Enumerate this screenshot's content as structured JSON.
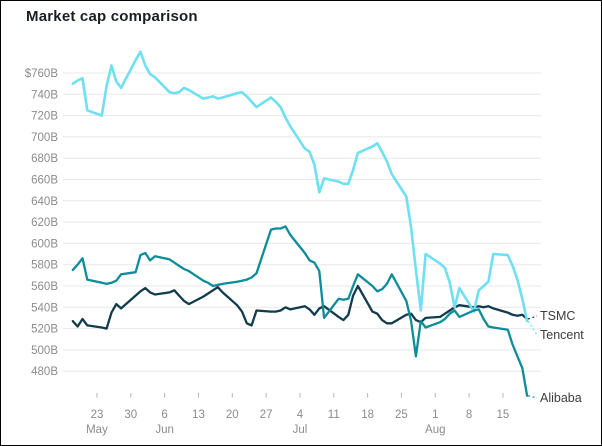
{
  "title": "Market cap comparison",
  "chart_data": {
    "type": "line",
    "title": "Market cap comparison",
    "unit": "USD billions",
    "y_axis": {
      "tick_labels": [
        "$760B",
        "740B",
        "720B",
        "700B",
        "680B",
        "660B",
        "640B",
        "620B",
        "600B",
        "580B",
        "560B",
        "540B",
        "520B",
        "500B",
        "480B"
      ],
      "tick_values": [
        760,
        740,
        720,
        700,
        680,
        660,
        640,
        620,
        600,
        580,
        560,
        540,
        520,
        500,
        480
      ],
      "range_top": 760,
      "range_bottom": 480,
      "grid": true
    },
    "x_axis": {
      "tick_labels": [
        "23",
        "30",
        "6",
        "13",
        "20",
        "27",
        "4",
        "11",
        "18",
        "25",
        "1",
        "8",
        "15"
      ],
      "tick_day_offsets": [
        5,
        12,
        19,
        26,
        33,
        40,
        47,
        54,
        61,
        68,
        75,
        82,
        89
      ],
      "month_labels": [
        {
          "label": "May",
          "tick_index": 0
        },
        {
          "label": "Jun",
          "tick_index": 2
        },
        {
          "label": "Jul",
          "tick_index": 6
        },
        {
          "label": "Aug",
          "tick_index": 10
        }
      ]
    },
    "day_offsets": [
      0,
      1,
      2,
      3,
      6,
      7,
      8,
      9,
      10,
      13,
      14,
      15,
      16,
      17,
      20,
      21,
      22,
      23,
      24,
      27,
      28,
      29,
      30,
      31,
      34,
      35,
      36,
      37,
      38,
      41,
      42,
      43,
      44,
      45,
      48,
      49,
      50,
      51,
      52,
      55,
      56,
      57,
      58,
      59,
      62,
      63,
      64,
      65,
      66,
      69,
      70,
      71,
      72,
      73,
      76,
      77,
      78,
      79,
      80,
      83,
      84,
      85,
      86,
      87,
      90,
      91,
      92,
      93,
      94
    ],
    "series": [
      {
        "name": "TSMC",
        "color": "#123c4d",
        "values": [
          527,
          522,
          529,
          523,
          521,
          520,
          535,
          543,
          539,
          551,
          555,
          558,
          554,
          552,
          554,
          556,
          551,
          546,
          543,
          550,
          553,
          556,
          559,
          554,
          542,
          536,
          525,
          523,
          537,
          536,
          536,
          537,
          540,
          538,
          541,
          538,
          533,
          539,
          541,
          531,
          528,
          533,
          551,
          560,
          536,
          534,
          528,
          525,
          525,
          533,
          534,
          528,
          526,
          530,
          531,
          534,
          537,
          540,
          542,
          540,
          541,
          540,
          541,
          539,
          535,
          533,
          532,
          533,
          529
        ]
      },
      {
        "name": "Tencent",
        "color": "#6fe0f2",
        "values": [
          750,
          753,
          755,
          725,
          720,
          748,
          767,
          752,
          746,
          772,
          780,
          767,
          759,
          756,
          742,
          741,
          742,
          746,
          744,
          736,
          737,
          738,
          736,
          737,
          741,
          742,
          738,
          733,
          728,
          737,
          733,
          728,
          718,
          710,
          689,
          686,
          674,
          648,
          661,
          658,
          656,
          656,
          669,
          685,
          691,
          694,
          686,
          677,
          665,
          644,
          615,
          575,
          537,
          590,
          581,
          577,
          563,
          540,
          558,
          536,
          556,
          560,
          564,
          590,
          589,
          579,
          566,
          548,
          527
        ]
      },
      {
        "name": "Alibaba",
        "color": "#0d8c99",
        "values": [
          575,
          580,
          586,
          566,
          563,
          562,
          563,
          565,
          571,
          573,
          589,
          591,
          584,
          588,
          585,
          582,
          579,
          576,
          574,
          565,
          563,
          560,
          561,
          562,
          564,
          565,
          566,
          568,
          572,
          613,
          614,
          614,
          616,
          608,
          591,
          584,
          582,
          574,
          530,
          548,
          547,
          548,
          560,
          571,
          560,
          555,
          557,
          562,
          571,
          546,
          527,
          494,
          527,
          521,
          526,
          529,
          534,
          537,
          531,
          537,
          538,
          529,
          522,
          521,
          519,
          505,
          494,
          483,
          457
        ]
      }
    ],
    "legend_position": "right-edge-direct-labels"
  }
}
